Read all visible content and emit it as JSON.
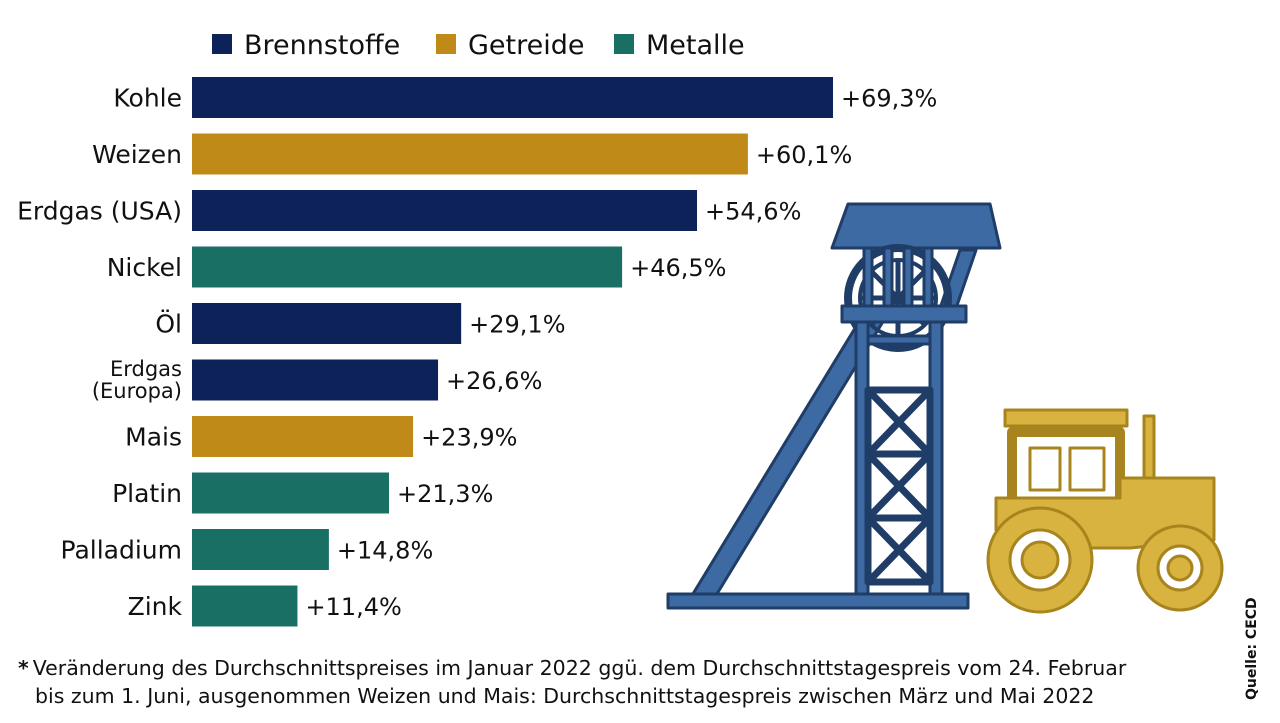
{
  "chart_data": {
    "type": "bar",
    "orientation": "horizontal",
    "xlim": [
      0,
      69.3
    ],
    "legend": [
      {
        "name": "Brennstoffe",
        "color": "#0d2259"
      },
      {
        "name": "Getreide",
        "color": "#bf8a17"
      },
      {
        "name": "Metalle",
        "color": "#1a6f64"
      }
    ],
    "legend_position": "top",
    "grid": false,
    "bars": [
      {
        "label": "Kohle",
        "value": 69.3,
        "value_label": "+69,3%",
        "group": "Brennstoffe"
      },
      {
        "label": "Weizen",
        "value": 60.1,
        "value_label": "+60,1%",
        "group": "Getreide"
      },
      {
        "label": "Erdgas (USA)",
        "value": 54.6,
        "value_label": "+54,6%",
        "group": "Brennstoffe"
      },
      {
        "label": "Nickel",
        "value": 46.5,
        "value_label": "+46,5%",
        "group": "Metalle"
      },
      {
        "label": "Öl",
        "value": 29.1,
        "value_label": "+29,1%",
        "group": "Brennstoffe"
      },
      {
        "label": "Erdgas (Europa)",
        "label_lines": [
          "Erdgas",
          "(Europa)"
        ],
        "value": 26.6,
        "value_label": "+26,6%",
        "group": "Brennstoffe"
      },
      {
        "label": "Mais",
        "value": 23.9,
        "value_label": "+23,9%",
        "group": "Getreide"
      },
      {
        "label": "Platin",
        "value": 21.3,
        "value_label": "+21,3%",
        "group": "Metalle"
      },
      {
        "label": "Palladium",
        "value": 14.8,
        "value_label": "+14,8%",
        "group": "Metalle"
      },
      {
        "label": "Zink",
        "value": 11.4,
        "value_label": "+11,4%",
        "group": "Metalle"
      }
    ]
  },
  "footnote": {
    "star": "*",
    "line1": "Veränderung des Durchschnittspreises im Januar 2022 ggü. dem Durchschnittstagespreis vom 24. Februar",
    "line2": "bis zum 1. Juni, ausgenommen Weizen und Mais: Durchschnittstagespreis zwischen März und Mai 2022"
  },
  "source": "Quelle: CECD",
  "illustrations": {
    "headframe_icon": {
      "color": "#3d6aa3"
    },
    "tractor_icon": {
      "color": "#d8b33f"
    }
  }
}
